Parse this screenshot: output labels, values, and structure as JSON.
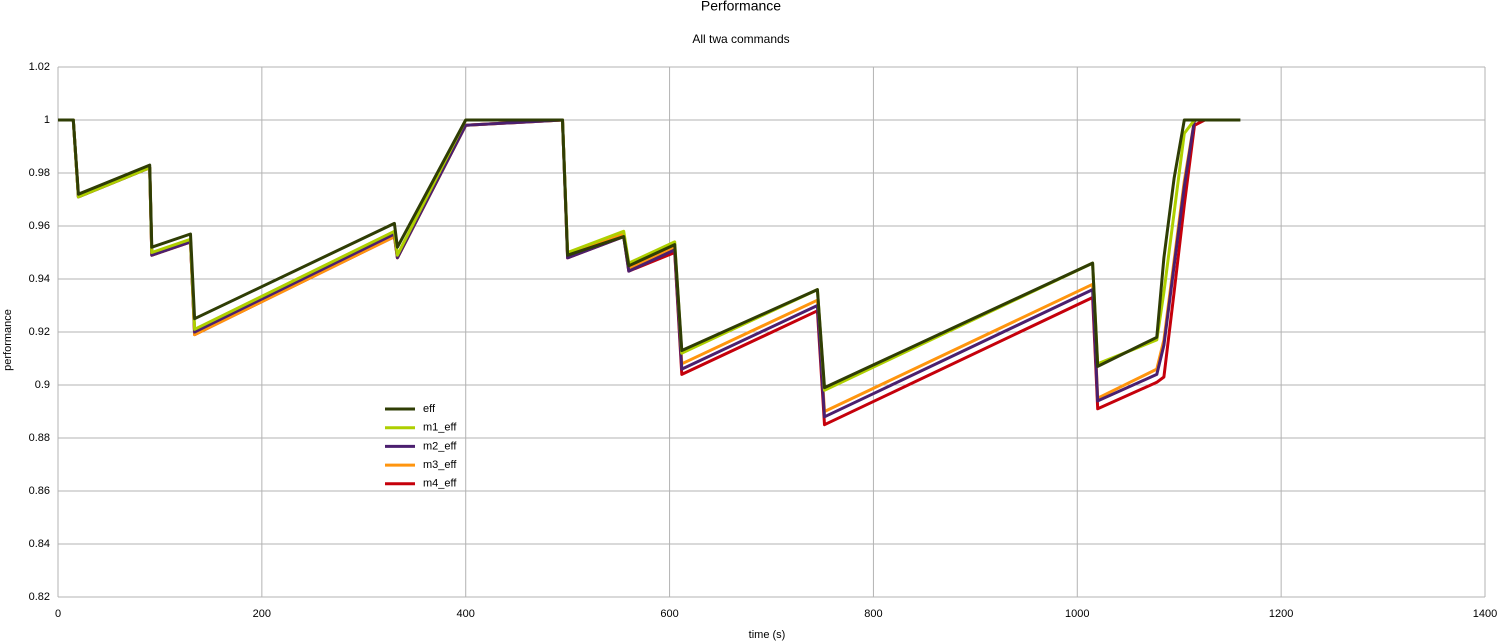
{
  "chart_data": {
    "type": "line",
    "title": "Performance",
    "subtitle": "All twa commands",
    "x_label": "time (s)",
    "y_label": "performance",
    "x": [
      0,
      15,
      20,
      90,
      92,
      130,
      134,
      330,
      333,
      400,
      495,
      500,
      555,
      560,
      605,
      612,
      745,
      752,
      1015,
      1020,
      1078,
      1085,
      1095,
      1105,
      1115,
      1125,
      1160
    ],
    "series": [
      {
        "name": "eff",
        "color": "#2f3d05",
        "values": [
          1,
          1,
          0.972,
          0.983,
          0.952,
          0.957,
          0.925,
          0.961,
          0.952,
          1,
          1,
          0.949,
          0.956,
          0.945,
          0.953,
          0.913,
          0.936,
          0.899,
          0.946,
          0.907,
          0.918,
          0.948,
          0.978,
          1,
          1,
          1,
          1
        ]
      },
      {
        "name": "m1_eff",
        "color": "#aecf00",
        "values": [
          1,
          1,
          0.971,
          0.982,
          0.95,
          0.955,
          0.921,
          0.958,
          0.949,
          1,
          1,
          0.95,
          0.958,
          0.946,
          0.954,
          0.912,
          0.936,
          0.898,
          0.946,
          0.908,
          0.917,
          0.935,
          0.965,
          0.995,
          1,
          1,
          null
        ]
      },
      {
        "name": "m2_eff",
        "color": "#4b1f6f",
        "values": [
          1,
          1,
          0.971,
          0.982,
          0.949,
          0.954,
          0.92,
          0.957,
          0.948,
          0.998,
          1,
          0.948,
          0.956,
          0.943,
          0.951,
          0.906,
          0.93,
          0.888,
          0.936,
          0.894,
          0.904,
          0.915,
          0.945,
          0.975,
          1,
          1,
          null
        ]
      },
      {
        "name": "m3_eff",
        "color": "#ff950e",
        "values": [
          1,
          1,
          0.971,
          0.982,
          0.949,
          0.954,
          0.919,
          0.956,
          0.948,
          0.998,
          1,
          0.949,
          0.957,
          0.944,
          0.952,
          0.908,
          0.932,
          0.89,
          0.938,
          0.895,
          0.906,
          0.917,
          0.947,
          0.977,
          1,
          1,
          null
        ]
      },
      {
        "name": "m4_eff",
        "color": "#c5000b",
        "values": [
          1,
          1,
          0.971,
          0.982,
          0.949,
          0.954,
          0.919,
          0.956,
          0.948,
          0.998,
          1,
          0.948,
          0.956,
          0.943,
          0.95,
          0.904,
          0.928,
          0.885,
          0.933,
          0.891,
          0.901,
          0.903,
          0.935,
          0.968,
          0.998,
          1,
          null
        ]
      }
    ],
    "xlim": [
      0,
      1400
    ],
    "xticks": [
      0,
      200,
      400,
      600,
      800,
      1000,
      1200,
      1400
    ],
    "ylim": [
      0.82,
      1.02
    ],
    "yticks": [
      0.82,
      0.84,
      0.86,
      0.88,
      0.9,
      0.92,
      0.94,
      0.96,
      0.98,
      1,
      1.02
    ],
    "grid": true
  }
}
